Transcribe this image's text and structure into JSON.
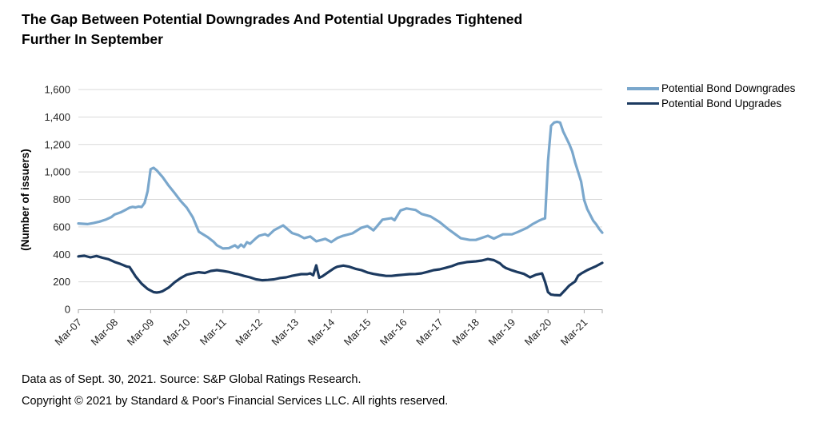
{
  "title": {
    "line1": "The Gap Between Potential Downgrades And Potential Upgrades Tightened",
    "line2": "Further In September"
  },
  "footer": {
    "line1": "Data as of Sept. 30, 2021. Source: S&P Global Ratings Research.",
    "line2": "Copyright © 2021 by Standard & Poor's Financial Services LLC. All rights reserved."
  },
  "legend": {
    "items": [
      {
        "label": "Potential Bond Downgrades",
        "color": "#7aa7cc"
      },
      {
        "label": "Potential Bond Upgrades",
        "color": "#1c3a60"
      }
    ]
  },
  "colors": {
    "downgrades_line": "#7aa7cc",
    "upgrades_line": "#1c3a60",
    "gridline": "#d9d9d9",
    "axis_line": "#a6a6a6",
    "tick_text": "#262626"
  },
  "chart_data": {
    "type": "line",
    "title": "The Gap Between Potential Downgrades And Potential Upgrades Tightened Further In September",
    "xlabel": "",
    "ylabel": "(Number of issuers)",
    "ylim": [
      0,
      1600
    ],
    "ytick_interval": 200,
    "ytick_labels": [
      "0",
      "200",
      "400",
      "600",
      "800",
      "1,000",
      "1,200",
      "1,400",
      "1,600"
    ],
    "xtick_labels": [
      "Mar-07",
      "Mar-08",
      "Mar-09",
      "Mar-10",
      "Mar-11",
      "Mar-12",
      "Mar-13",
      "Mar-14",
      "Mar-15",
      "Mar-16",
      "Mar-17",
      "Mar-18",
      "Mar-19",
      "Mar-20",
      "Mar-21"
    ],
    "x_unit": "months since Mar-2007 (monthly data, Mar-07 = 0, Sep-21 = 174)",
    "x_range": [
      0,
      174
    ],
    "grid": "horizontal",
    "legend_position": "right",
    "series": [
      {
        "name": "Potential Bond Downgrades",
        "color": "#7aa7cc",
        "points": [
          [
            0,
            625
          ],
          [
            2,
            622
          ],
          [
            3,
            620
          ],
          [
            5,
            628
          ],
          [
            7,
            638
          ],
          [
            9,
            652
          ],
          [
            11,
            672
          ],
          [
            12,
            690
          ],
          [
            14,
            705
          ],
          [
            16,
            728
          ],
          [
            17,
            740
          ],
          [
            18,
            746
          ],
          [
            19,
            742
          ],
          [
            20,
            748
          ],
          [
            21,
            745
          ],
          [
            22,
            775
          ],
          [
            23,
            860
          ],
          [
            24,
            1020
          ],
          [
            25,
            1030
          ],
          [
            26,
            1012
          ],
          [
            28,
            962
          ],
          [
            30,
            900
          ],
          [
            32,
            845
          ],
          [
            34,
            788
          ],
          [
            36,
            740
          ],
          [
            38,
            670
          ],
          [
            40,
            565
          ],
          [
            43,
            524
          ],
          [
            45,
            490
          ],
          [
            46,
            466
          ],
          [
            48,
            443
          ],
          [
            50,
            445
          ],
          [
            52,
            466
          ],
          [
            53,
            448
          ],
          [
            54,
            471
          ],
          [
            55,
            454
          ],
          [
            56,
            489
          ],
          [
            57,
            477
          ],
          [
            59,
            518
          ],
          [
            60,
            535
          ],
          [
            62,
            547
          ],
          [
            63,
            535
          ],
          [
            65,
            576
          ],
          [
            67,
            599
          ],
          [
            68,
            611
          ],
          [
            69,
            593
          ],
          [
            71,
            555
          ],
          [
            73,
            541
          ],
          [
            75,
            518
          ],
          [
            77,
            530
          ],
          [
            79,
            495
          ],
          [
            82,
            513
          ],
          [
            84,
            490
          ],
          [
            86,
            519
          ],
          [
            88,
            536
          ],
          [
            91,
            553
          ],
          [
            94,
            594
          ],
          [
            96,
            606
          ],
          [
            98,
            575
          ],
          [
            99,
            600
          ],
          [
            101,
            653
          ],
          [
            104,
            664
          ],
          [
            105,
            648
          ],
          [
            107,
            720
          ],
          [
            109,
            734
          ],
          [
            112,
            723
          ],
          [
            114,
            694
          ],
          [
            117,
            676
          ],
          [
            120,
            635
          ],
          [
            123,
            581
          ],
          [
            127,
            517
          ],
          [
            130,
            505
          ],
          [
            132,
            505
          ],
          [
            136,
            535
          ],
          [
            138,
            515
          ],
          [
            141,
            546
          ],
          [
            144,
            546
          ],
          [
            146,
            563
          ],
          [
            149,
            593
          ],
          [
            151,
            622
          ],
          [
            153,
            645
          ],
          [
            154,
            655
          ],
          [
            155,
            662
          ],
          [
            156,
            1080
          ],
          [
            157,
            1336
          ],
          [
            158,
            1360
          ],
          [
            159,
            1365
          ],
          [
            160,
            1360
          ],
          [
            161,
            1295
          ],
          [
            163,
            1205
          ],
          [
            164,
            1150
          ],
          [
            165,
            1069
          ],
          [
            167,
            930
          ],
          [
            168,
            796
          ],
          [
            169,
            730
          ],
          [
            171,
            645
          ],
          [
            172,
            618
          ],
          [
            173,
            585
          ],
          [
            174,
            558
          ]
        ]
      },
      {
        "name": "Potential Bond Upgrades",
        "color": "#1c3a60",
        "points": [
          [
            0,
            385
          ],
          [
            2,
            390
          ],
          [
            4,
            378
          ],
          [
            6,
            388
          ],
          [
            8,
            375
          ],
          [
            10,
            365
          ],
          [
            12,
            345
          ],
          [
            14,
            330
          ],
          [
            16,
            312
          ],
          [
            17,
            308
          ],
          [
            19,
            240
          ],
          [
            21,
            186
          ],
          [
            23,
            148
          ],
          [
            25,
            125
          ],
          [
            26,
            122
          ],
          [
            27,
            125
          ],
          [
            28,
            132
          ],
          [
            30,
            158
          ],
          [
            32,
            197
          ],
          [
            34,
            228
          ],
          [
            36,
            252
          ],
          [
            38,
            262
          ],
          [
            40,
            270
          ],
          [
            42,
            265
          ],
          [
            44,
            279
          ],
          [
            46,
            285
          ],
          [
            48,
            279
          ],
          [
            50,
            272
          ],
          [
            52,
            260
          ],
          [
            53,
            256
          ],
          [
            55,
            243
          ],
          [
            57,
            233
          ],
          [
            59,
            218
          ],
          [
            61,
            212
          ],
          [
            63,
            214
          ],
          [
            65,
            218
          ],
          [
            67,
            228
          ],
          [
            69,
            233
          ],
          [
            71,
            244
          ],
          [
            74,
            256
          ],
          [
            76,
            256
          ],
          [
            77,
            262
          ],
          [
            78,
            248
          ],
          [
            79,
            320
          ],
          [
            80,
            230
          ],
          [
            81,
            240
          ],
          [
            83,
            270
          ],
          [
            85,
            300
          ],
          [
            86,
            310
          ],
          [
            88,
            318
          ],
          [
            90,
            310
          ],
          [
            92,
            295
          ],
          [
            94,
            285
          ],
          [
            96,
            268
          ],
          [
            98,
            258
          ],
          [
            100,
            250
          ],
          [
            102,
            244
          ],
          [
            104,
            243
          ],
          [
            106,
            248
          ],
          [
            108,
            252
          ],
          [
            110,
            256
          ],
          [
            112,
            257
          ],
          [
            114,
            262
          ],
          [
            116,
            273
          ],
          [
            118,
            285
          ],
          [
            120,
            291
          ],
          [
            122,
            302
          ],
          [
            124,
            314
          ],
          [
            126,
            331
          ],
          [
            129,
            344
          ],
          [
            132,
            349
          ],
          [
            134,
            355
          ],
          [
            136,
            366
          ],
          [
            138,
            358
          ],
          [
            140,
            335
          ],
          [
            141,
            314
          ],
          [
            142,
            300
          ],
          [
            144,
            284
          ],
          [
            146,
            270
          ],
          [
            148,
            258
          ],
          [
            150,
            233
          ],
          [
            152,
            252
          ],
          [
            154,
            261
          ],
          [
            155,
            200
          ],
          [
            156,
            125
          ],
          [
            157,
            107
          ],
          [
            158,
            104
          ],
          [
            160,
            102
          ],
          [
            161,
            125
          ],
          [
            162,
            148
          ],
          [
            163,
            172
          ],
          [
            165,
            203
          ],
          [
            166,
            245
          ],
          [
            167,
            260
          ],
          [
            168,
            273
          ],
          [
            169,
            285
          ],
          [
            170,
            295
          ],
          [
            172,
            315
          ],
          [
            174,
            338
          ]
        ]
      }
    ]
  }
}
